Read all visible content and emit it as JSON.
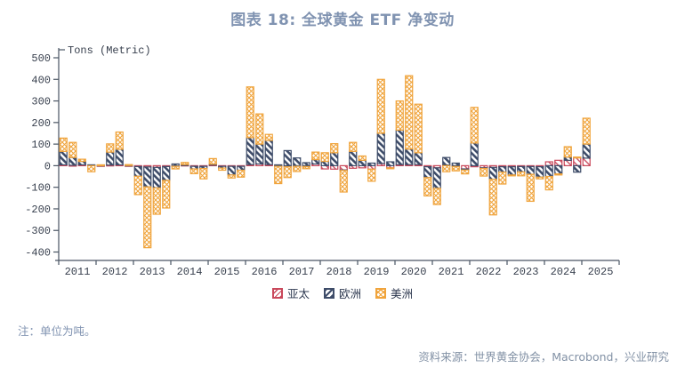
{
  "title": "图表 18: 全球黄金 ETF 净变动",
  "note": "注：单位为吨。",
  "source": "资料来源：世界黄金协会，Macrobond，兴业研究",
  "chart_data": {
    "type": "bar",
    "stacked": true,
    "title": "图表 18: 全球黄金 ETF 净变动",
    "ylabel": "Tons (Metric)",
    "ylim": [
      -400,
      500
    ],
    "yticks": [
      500,
      400,
      300,
      200,
      100,
      0,
      -100,
      -200,
      -300,
      -400
    ],
    "grid": false,
    "legend_position": "bottom",
    "x_start": "2011Q1",
    "x_freq": "quarterly",
    "years": [
      "2011",
      "2012",
      "2013",
      "2014",
      "2015",
      "2016",
      "2017",
      "2018",
      "2019",
      "2020",
      "2021",
      "2022",
      "2023",
      "2024",
      "2025"
    ],
    "series": [
      {
        "name": "亚太",
        "color": "#c9485b",
        "pattern": "slash",
        "values": [
          4,
          2,
          4,
          0,
          1,
          3,
          4,
          1,
          -4,
          -6,
          -8,
          -4,
          -3,
          3,
          -3,
          -3,
          4,
          -3,
          -3,
          -3,
          5,
          8,
          5,
          -3,
          -5,
          -3,
          -4,
          8,
          -15,
          -16,
          -20,
          -12,
          -10,
          -16,
          10,
          -10,
          5,
          5,
          5,
          -5,
          -10,
          3,
          -4,
          -15,
          -5,
          -10,
          -8,
          -5,
          -5,
          -4,
          -4,
          -5,
          18,
          25,
          25,
          38,
          35
        ]
      },
      {
        "name": "欧洲",
        "color": "#3e4c69",
        "pattern": "stripe",
        "values": [
          62,
          36,
          16,
          4,
          2,
          60,
          72,
          2,
          -45,
          -92,
          -95,
          -64,
          8,
          2,
          -12,
          -10,
          3,
          -8,
          -40,
          -18,
          125,
          92,
          112,
          4,
          70,
          36,
          14,
          20,
          20,
          60,
          -2,
          66,
          25,
          12,
          140,
          18,
          160,
          72,
          55,
          -50,
          -95,
          35,
          12,
          -5,
          105,
          -3,
          -55,
          -25,
          -38,
          -25,
          -36,
          -48,
          -50,
          -38,
          15,
          -30,
          65
        ]
      },
      {
        "name": "美洲",
        "color": "#f0a43c",
        "pattern": "cross",
        "values": [
          62,
          70,
          10,
          -28,
          1,
          38,
          80,
          2,
          -85,
          -282,
          -122,
          -128,
          -12,
          10,
          -22,
          -48,
          26,
          -10,
          -14,
          -32,
          235,
          140,
          28,
          -80,
          -50,
          -24,
          -10,
          35,
          40,
          42,
          -100,
          42,
          20,
          -56,
          250,
          -4,
          135,
          340,
          225,
          -85,
          -75,
          -28,
          -20,
          -18,
          165,
          -35,
          -165,
          -55,
          -2,
          -18,
          -125,
          -8,
          -62,
          -5,
          48,
          2,
          120
        ]
      }
    ]
  }
}
